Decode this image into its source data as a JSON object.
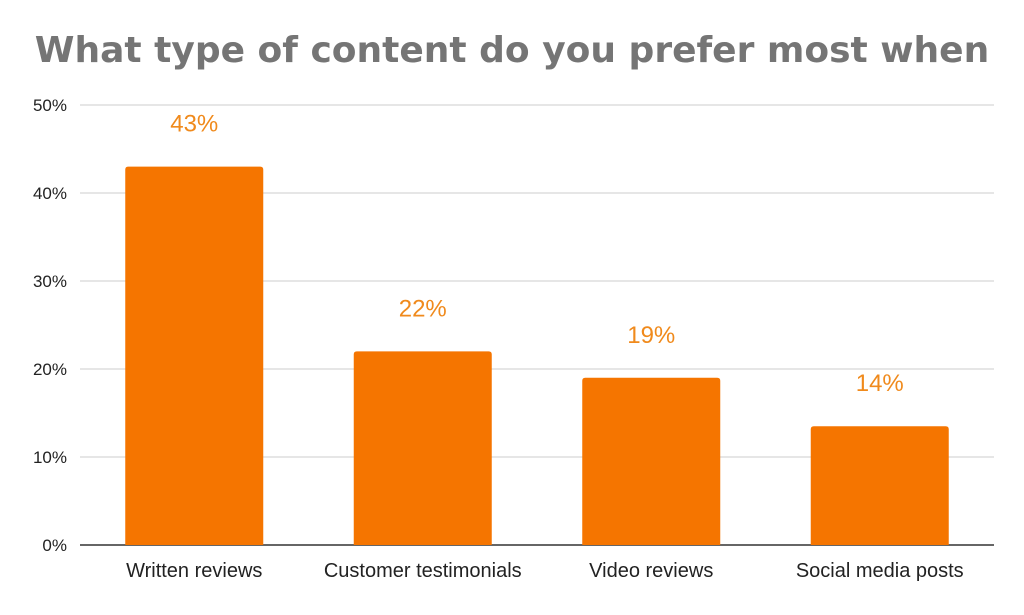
{
  "chart_data": {
    "type": "bar",
    "title": "What type of content do you prefer most when",
    "xlabel": "",
    "ylabel": "",
    "categories": [
      "Written reviews",
      "Customer testimonials",
      "Video reviews",
      "Social media posts"
    ],
    "values": [
      43,
      22,
      19,
      13.5
    ],
    "data_labels": [
      "43%",
      "22%",
      "19%",
      "14%"
    ],
    "ylim": [
      0,
      50
    ],
    "y_ticks": [
      0,
      10,
      20,
      30,
      40,
      50
    ],
    "y_tick_labels": [
      "0%",
      "10%",
      "20%",
      "30%",
      "40%",
      "50%"
    ],
    "grid": true,
    "legend": "none",
    "colors": {
      "bar": "#f57500",
      "data_label": "#f08a1c",
      "title": "#757575",
      "grid": "#cccccc"
    }
  }
}
